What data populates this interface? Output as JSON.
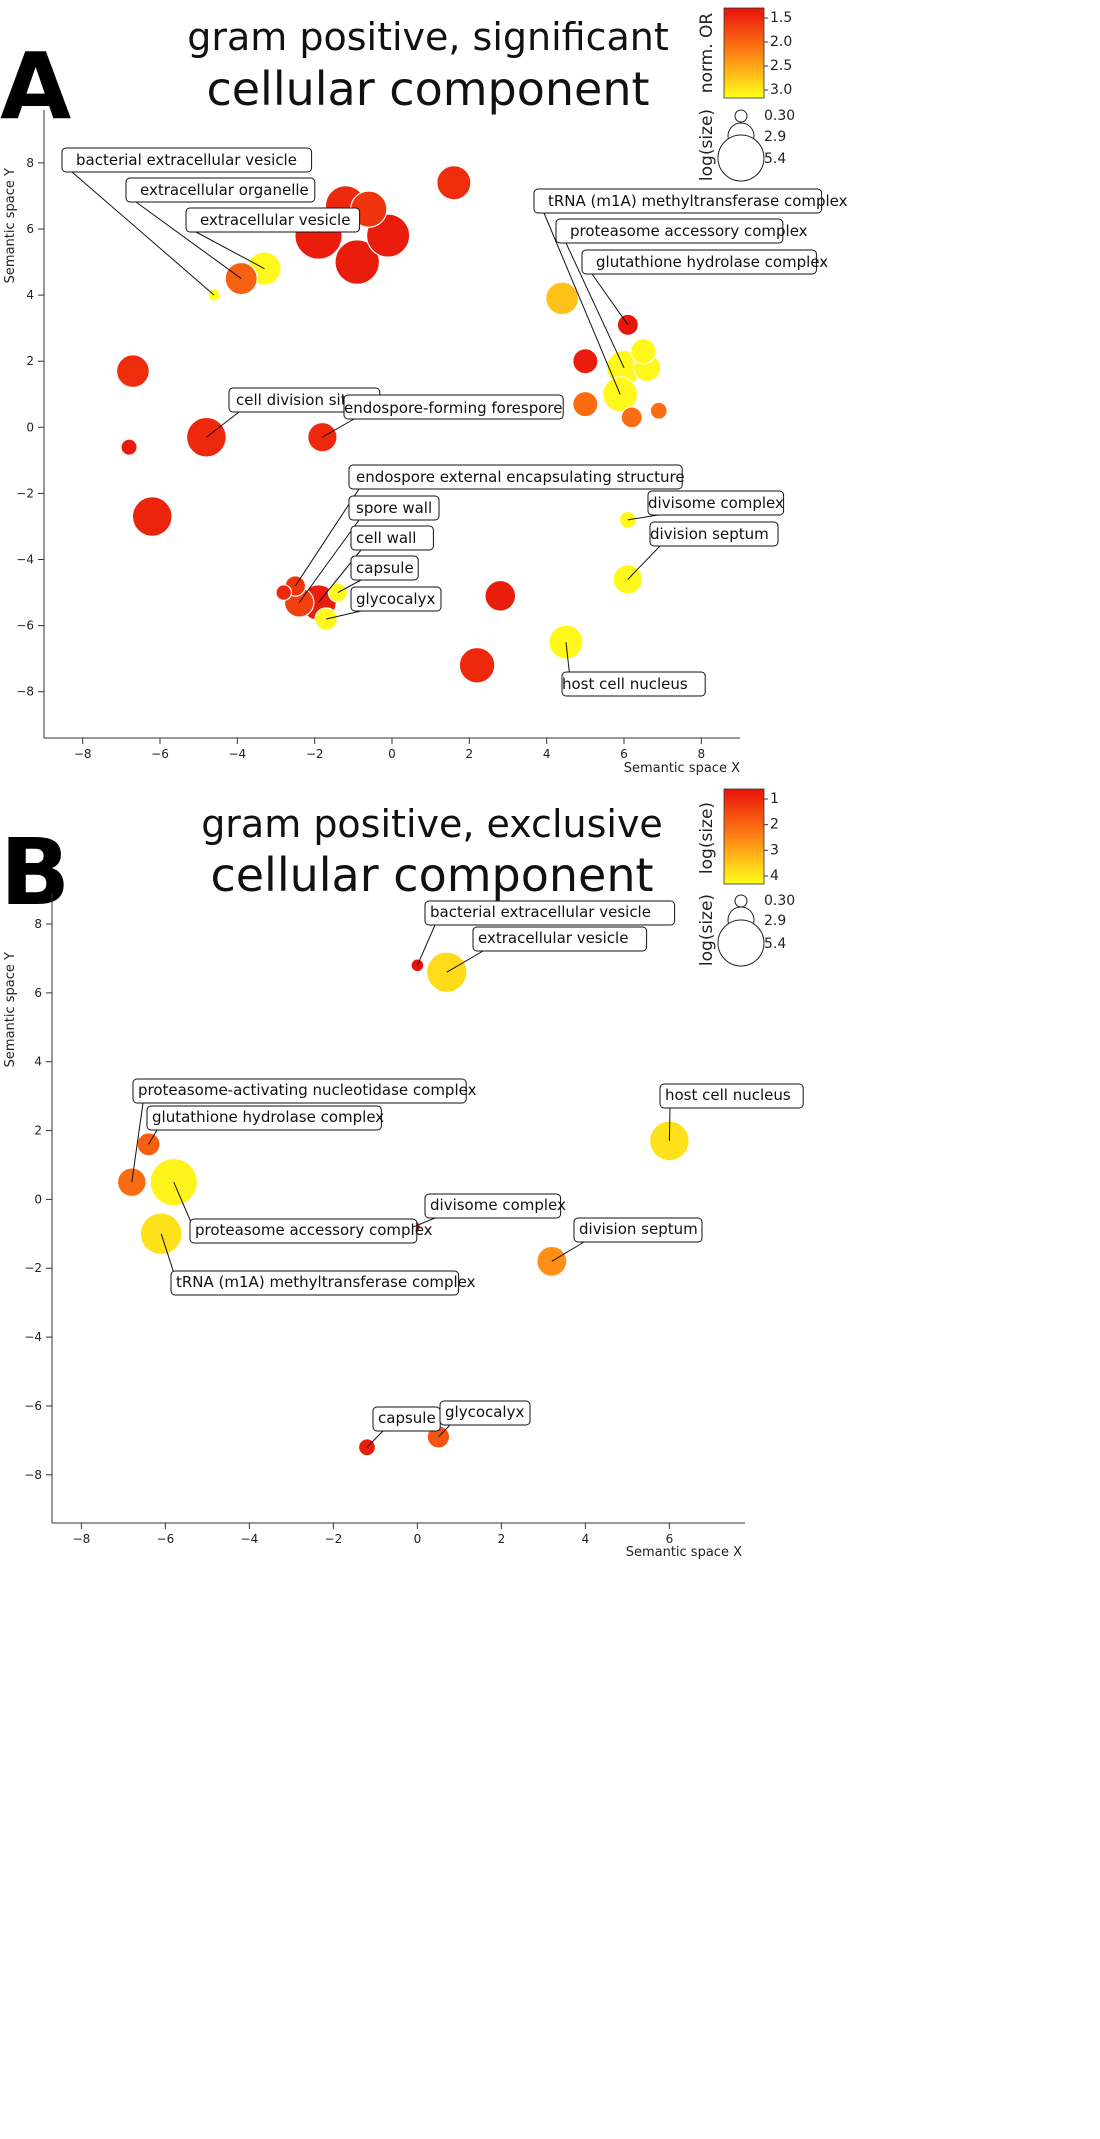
{
  "chart_data": [
    {
      "type": "scatter",
      "panel_letter": "A",
      "title": "gram positive, significant",
      "subtitle": "cellular component",
      "xlabel": "Semantic space X",
      "ylabel": "Semantic space Y",
      "xlim": [
        -9,
        9
      ],
      "ylim": [
        -9.4,
        9.6
      ],
      "xticks": [
        -8,
        -6,
        -4,
        -2,
        0,
        2,
        4,
        6,
        8
      ],
      "yticks": [
        -8,
        -6,
        -4,
        -2,
        0,
        2,
        4,
        6,
        8
      ],
      "color_legend": {
        "title": "norm. OR",
        "ticks": [
          "1.5",
          "2.0",
          "2.5",
          "3.0"
        ],
        "low_color": "#e8120b",
        "high_color": "#ffff1a"
      },
      "size_legend": {
        "title": "log(size)",
        "values": [
          "0.30",
          "2.9",
          "5.4"
        ]
      },
      "points": [
        {
          "x": -4.6,
          "y": 4.0,
          "size": 0.3,
          "color": 1.0,
          "label": "bacterial extracellular vesicle"
        },
        {
          "x": -3.9,
          "y": 4.5,
          "size": 3.2,
          "color": 0.35,
          "label": "extracellular organelle"
        },
        {
          "x": -3.3,
          "y": 4.8,
          "size": 3.4,
          "color": 0.97,
          "label": "extracellular vesicle"
        },
        {
          "x": -1.9,
          "y": 5.8,
          "size": 5.4,
          "color": 0.05,
          "label": ""
        },
        {
          "x": -1.2,
          "y": 6.7,
          "size": 4.4,
          "color": 0.1,
          "label": ""
        },
        {
          "x": -0.6,
          "y": 6.6,
          "size": 3.8,
          "color": 0.15,
          "label": ""
        },
        {
          "x": -0.9,
          "y": 5.0,
          "size": 5.0,
          "color": 0.05,
          "label": ""
        },
        {
          "x": -0.1,
          "y": 5.8,
          "size": 4.8,
          "color": 0.05,
          "label": ""
        },
        {
          "x": 1.6,
          "y": 7.4,
          "size": 3.5,
          "color": 0.12,
          "label": ""
        },
        {
          "x": -6.7,
          "y": 1.7,
          "size": 3.3,
          "color": 0.12,
          "label": ""
        },
        {
          "x": -6.8,
          "y": -0.6,
          "size": 0.9,
          "color": 0.05,
          "label": ""
        },
        {
          "x": -4.8,
          "y": -0.3,
          "size": 4.3,
          "color": 0.1,
          "label": "cell division site"
        },
        {
          "x": -1.8,
          "y": -0.3,
          "size": 2.8,
          "color": 0.1,
          "label": "endospore-forming forespore"
        },
        {
          "x": -6.2,
          "y": -2.7,
          "size": 4.3,
          "color": 0.08,
          "label": ""
        },
        {
          "x": -2.5,
          "y": -4.8,
          "size": 1.5,
          "color": 0.15,
          "label": "endospore external encapsulating structure"
        },
        {
          "x": -2.4,
          "y": -5.3,
          "size": 2.8,
          "color": 0.2,
          "label": "spore wall"
        },
        {
          "x": -1.9,
          "y": -5.3,
          "size": 3.7,
          "color": 0.05,
          "label": "cell wall"
        },
        {
          "x": -1.4,
          "y": -5.0,
          "size": 1.3,
          "color": 0.97,
          "label": "capsule"
        },
        {
          "x": -1.7,
          "y": -5.8,
          "size": 1.8,
          "color": 0.97,
          "label": "glycocalyx"
        },
        {
          "x": -2.8,
          "y": -5.0,
          "size": 0.8,
          "color": 0.1,
          "label": ""
        },
        {
          "x": 2.8,
          "y": -5.1,
          "size": 3.0,
          "color": 0.05,
          "label": ""
        },
        {
          "x": 2.2,
          "y": -7.2,
          "size": 3.7,
          "color": 0.1,
          "label": ""
        },
        {
          "x": 4.4,
          "y": 3.9,
          "size": 3.3,
          "color": 0.75,
          "label": ""
        },
        {
          "x": 6.1,
          "y": 3.1,
          "size": 1.6,
          "color": 0.02,
          "label": "glutathione hydrolase complex"
        },
        {
          "x": 5.0,
          "y": 2.0,
          "size": 2.2,
          "color": 0.05,
          "label": ""
        },
        {
          "x": 6.5,
          "y": 2.3,
          "size": 2.2,
          "color": 0.97,
          "label": ""
        },
        {
          "x": 6.6,
          "y": 1.8,
          "size": 2.5,
          "color": 0.97,
          "label": ""
        },
        {
          "x": 6.0,
          "y": 1.8,
          "size": 3.6,
          "color": 0.97,
          "label": "proteasome accessory complex"
        },
        {
          "x": 5.9,
          "y": 1.0,
          "size": 3.6,
          "color": 0.97,
          "label": "tRNA (m1A) methyltransferase complex"
        },
        {
          "x": 5.0,
          "y": 0.7,
          "size": 2.2,
          "color": 0.4,
          "label": ""
        },
        {
          "x": 6.2,
          "y": 0.3,
          "size": 1.6,
          "color": 0.4,
          "label": ""
        },
        {
          "x": 6.9,
          "y": 0.5,
          "size": 1.0,
          "color": 0.4,
          "label": ""
        },
        {
          "x": 6.1,
          "y": -2.8,
          "size": 1.0,
          "color": 0.97,
          "label": "divisome complex"
        },
        {
          "x": 6.1,
          "y": -4.6,
          "size": 2.8,
          "color": 0.97,
          "label": "division septum"
        },
        {
          "x": 4.5,
          "y": -6.5,
          "size": 3.5,
          "color": 0.97,
          "label": "host cell nucleus"
        }
      ]
    },
    {
      "type": "scatter",
      "panel_letter": "B",
      "title": "gram positive, exclusive",
      "subtitle": "cellular component",
      "xlabel": "Semantic space X",
      "ylabel": "Semantic space Y",
      "xlim": [
        -8.7,
        7.8
      ],
      "ylim": [
        -9.4,
        8.9
      ],
      "xticks": [
        -8,
        -6,
        -4,
        -2,
        0,
        2,
        4,
        6
      ],
      "yticks": [
        -8,
        -6,
        -4,
        -2,
        0,
        2,
        4,
        6,
        8
      ],
      "color_legend": {
        "title": "log(size)",
        "ticks": [
          "1",
          "2",
          "3",
          "4"
        ],
        "low_color": "#e8120b",
        "high_color": "#ffff1a"
      },
      "size_legend": {
        "title": "log(size)",
        "values": [
          "0.30",
          "2.9",
          "5.4"
        ]
      },
      "points": [
        {
          "x": 0.0,
          "y": 6.8,
          "size": 0.4,
          "color": 0.0,
          "label": "bacterial extracellular vesicle"
        },
        {
          "x": 0.7,
          "y": 6.6,
          "size": 4.4,
          "color": 0.85,
          "label": "extracellular vesicle"
        },
        {
          "x": -6.8,
          "y": 0.5,
          "size": 2.7,
          "color": 0.4,
          "label": "proteasome-activating nucleotidase complex"
        },
        {
          "x": -6.4,
          "y": 1.6,
          "size": 1.9,
          "color": 0.35,
          "label": "glutathione hydrolase complex"
        },
        {
          "x": -5.8,
          "y": 0.5,
          "size": 5.4,
          "color": 0.95,
          "label": "proteasome accessory complex"
        },
        {
          "x": -6.1,
          "y": -1.0,
          "size": 4.6,
          "color": 0.88,
          "label": "tRNA (m1A) methyltransferase complex"
        },
        {
          "x": 6.0,
          "y": 1.7,
          "size": 4.3,
          "color": 0.88,
          "label": "host cell nucleus"
        },
        {
          "x": -0.1,
          "y": -0.8,
          "size": 0.6,
          "color": 0.0,
          "label": "divisome complex"
        },
        {
          "x": 3.2,
          "y": -1.8,
          "size": 2.9,
          "color": 0.55,
          "label": "division septum"
        },
        {
          "x": -1.2,
          "y": -7.2,
          "size": 1.0,
          "color": 0.05,
          "label": "capsule"
        },
        {
          "x": 0.5,
          "y": -6.9,
          "size": 1.8,
          "color": 0.3,
          "label": "glycocalyx"
        }
      ]
    }
  ]
}
